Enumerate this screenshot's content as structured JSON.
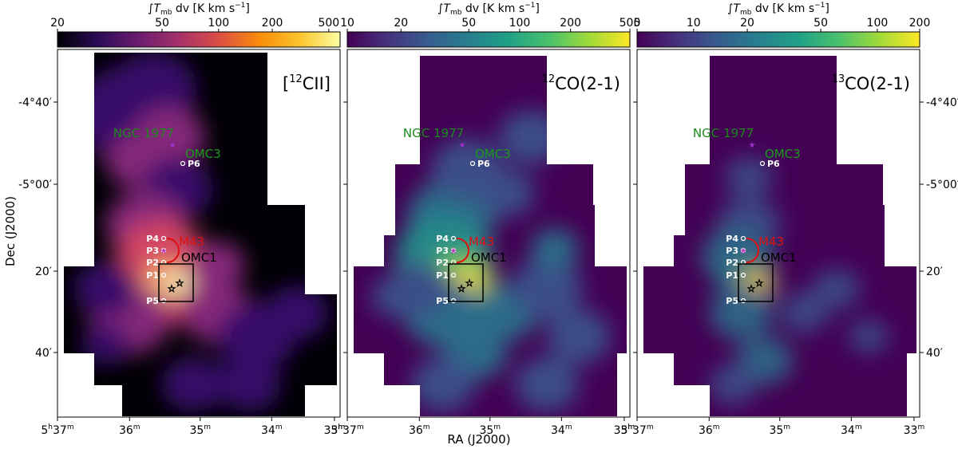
{
  "colorbar_label": "∫T",
  "colorbar_label_sub": "mb",
  "colorbar_label_rest": " dv  [K km s",
  "colorbar_label_exp": "−1",
  "colorbar_label_end": "]",
  "axis": {
    "ylabel": "Dec (J2000)",
    "xlabel": "RA (J2000)",
    "ra_ticks": [
      {
        "h": "5",
        "m": "37"
      },
      {
        "h": "",
        "m": "36"
      },
      {
        "h": "",
        "m": "35"
      },
      {
        "h": "",
        "m": "34"
      },
      {
        "h": "",
        "m": "33"
      }
    ],
    "ra_hour_suffix": "h",
    "ra_min_suffix": "m",
    "dec_ticks": [
      "-4°40′",
      "-5°00′",
      "20′",
      "40′"
    ]
  },
  "panels": [
    {
      "name": "cii",
      "label_pre": "[",
      "label_sup": "12",
      "label_main": "CII]",
      "cbar_ticks": [
        "20",
        "50",
        "100",
        "200",
        "500"
      ],
      "cbar_colors": [
        "#000004",
        "#2c0b57",
        "#6a1c6e",
        "#a5316b",
        "#db4e45",
        "#f98b0b",
        "#fbc42c",
        "#fcffa4"
      ],
      "background": "#000004",
      "glow_colors": [
        "#3b0f6f",
        "#8c2981",
        "#de4968",
        "#fe9f6d",
        "#fcfdbf"
      ]
    },
    {
      "name": "co12",
      "label_pre": "",
      "label_sup": "12",
      "label_main": "CO(2-1)",
      "cbar_ticks": [
        "10",
        "20",
        "50",
        "100",
        "200",
        "500"
      ],
      "cbar_colors": [
        "#440154",
        "#46327e",
        "#365c8d",
        "#277f8e",
        "#1fa187",
        "#4ac16d",
        "#a0da39",
        "#fde725"
      ],
      "background": "#440154",
      "glow_colors": [
        "#3b528b",
        "#2c728e",
        "#21918c",
        "#5ec962",
        "#fde725"
      ]
    },
    {
      "name": "co13",
      "label_pre": "",
      "label_sup": "13",
      "label_main": "CO(2-1)",
      "cbar_ticks": [
        "5",
        "10",
        "20",
        "50",
        "100",
        "200"
      ],
      "cbar_colors": [
        "#440154",
        "#46327e",
        "#365c8d",
        "#277f8e",
        "#1fa187",
        "#4ac16d",
        "#a0da39",
        "#fde725"
      ],
      "background": "#440154",
      "glow_colors": [
        "#3b528b",
        "#2c728e",
        "#21918c",
        "#5ec962",
        "#fde725"
      ]
    }
  ],
  "annotations": {
    "ngc1977": "NGC 1977",
    "omc3": "OMC3",
    "m43": "M43",
    "omc1": "OMC1",
    "points": [
      "P1",
      "P2",
      "P3",
      "P4",
      "P5",
      "P6"
    ]
  }
}
